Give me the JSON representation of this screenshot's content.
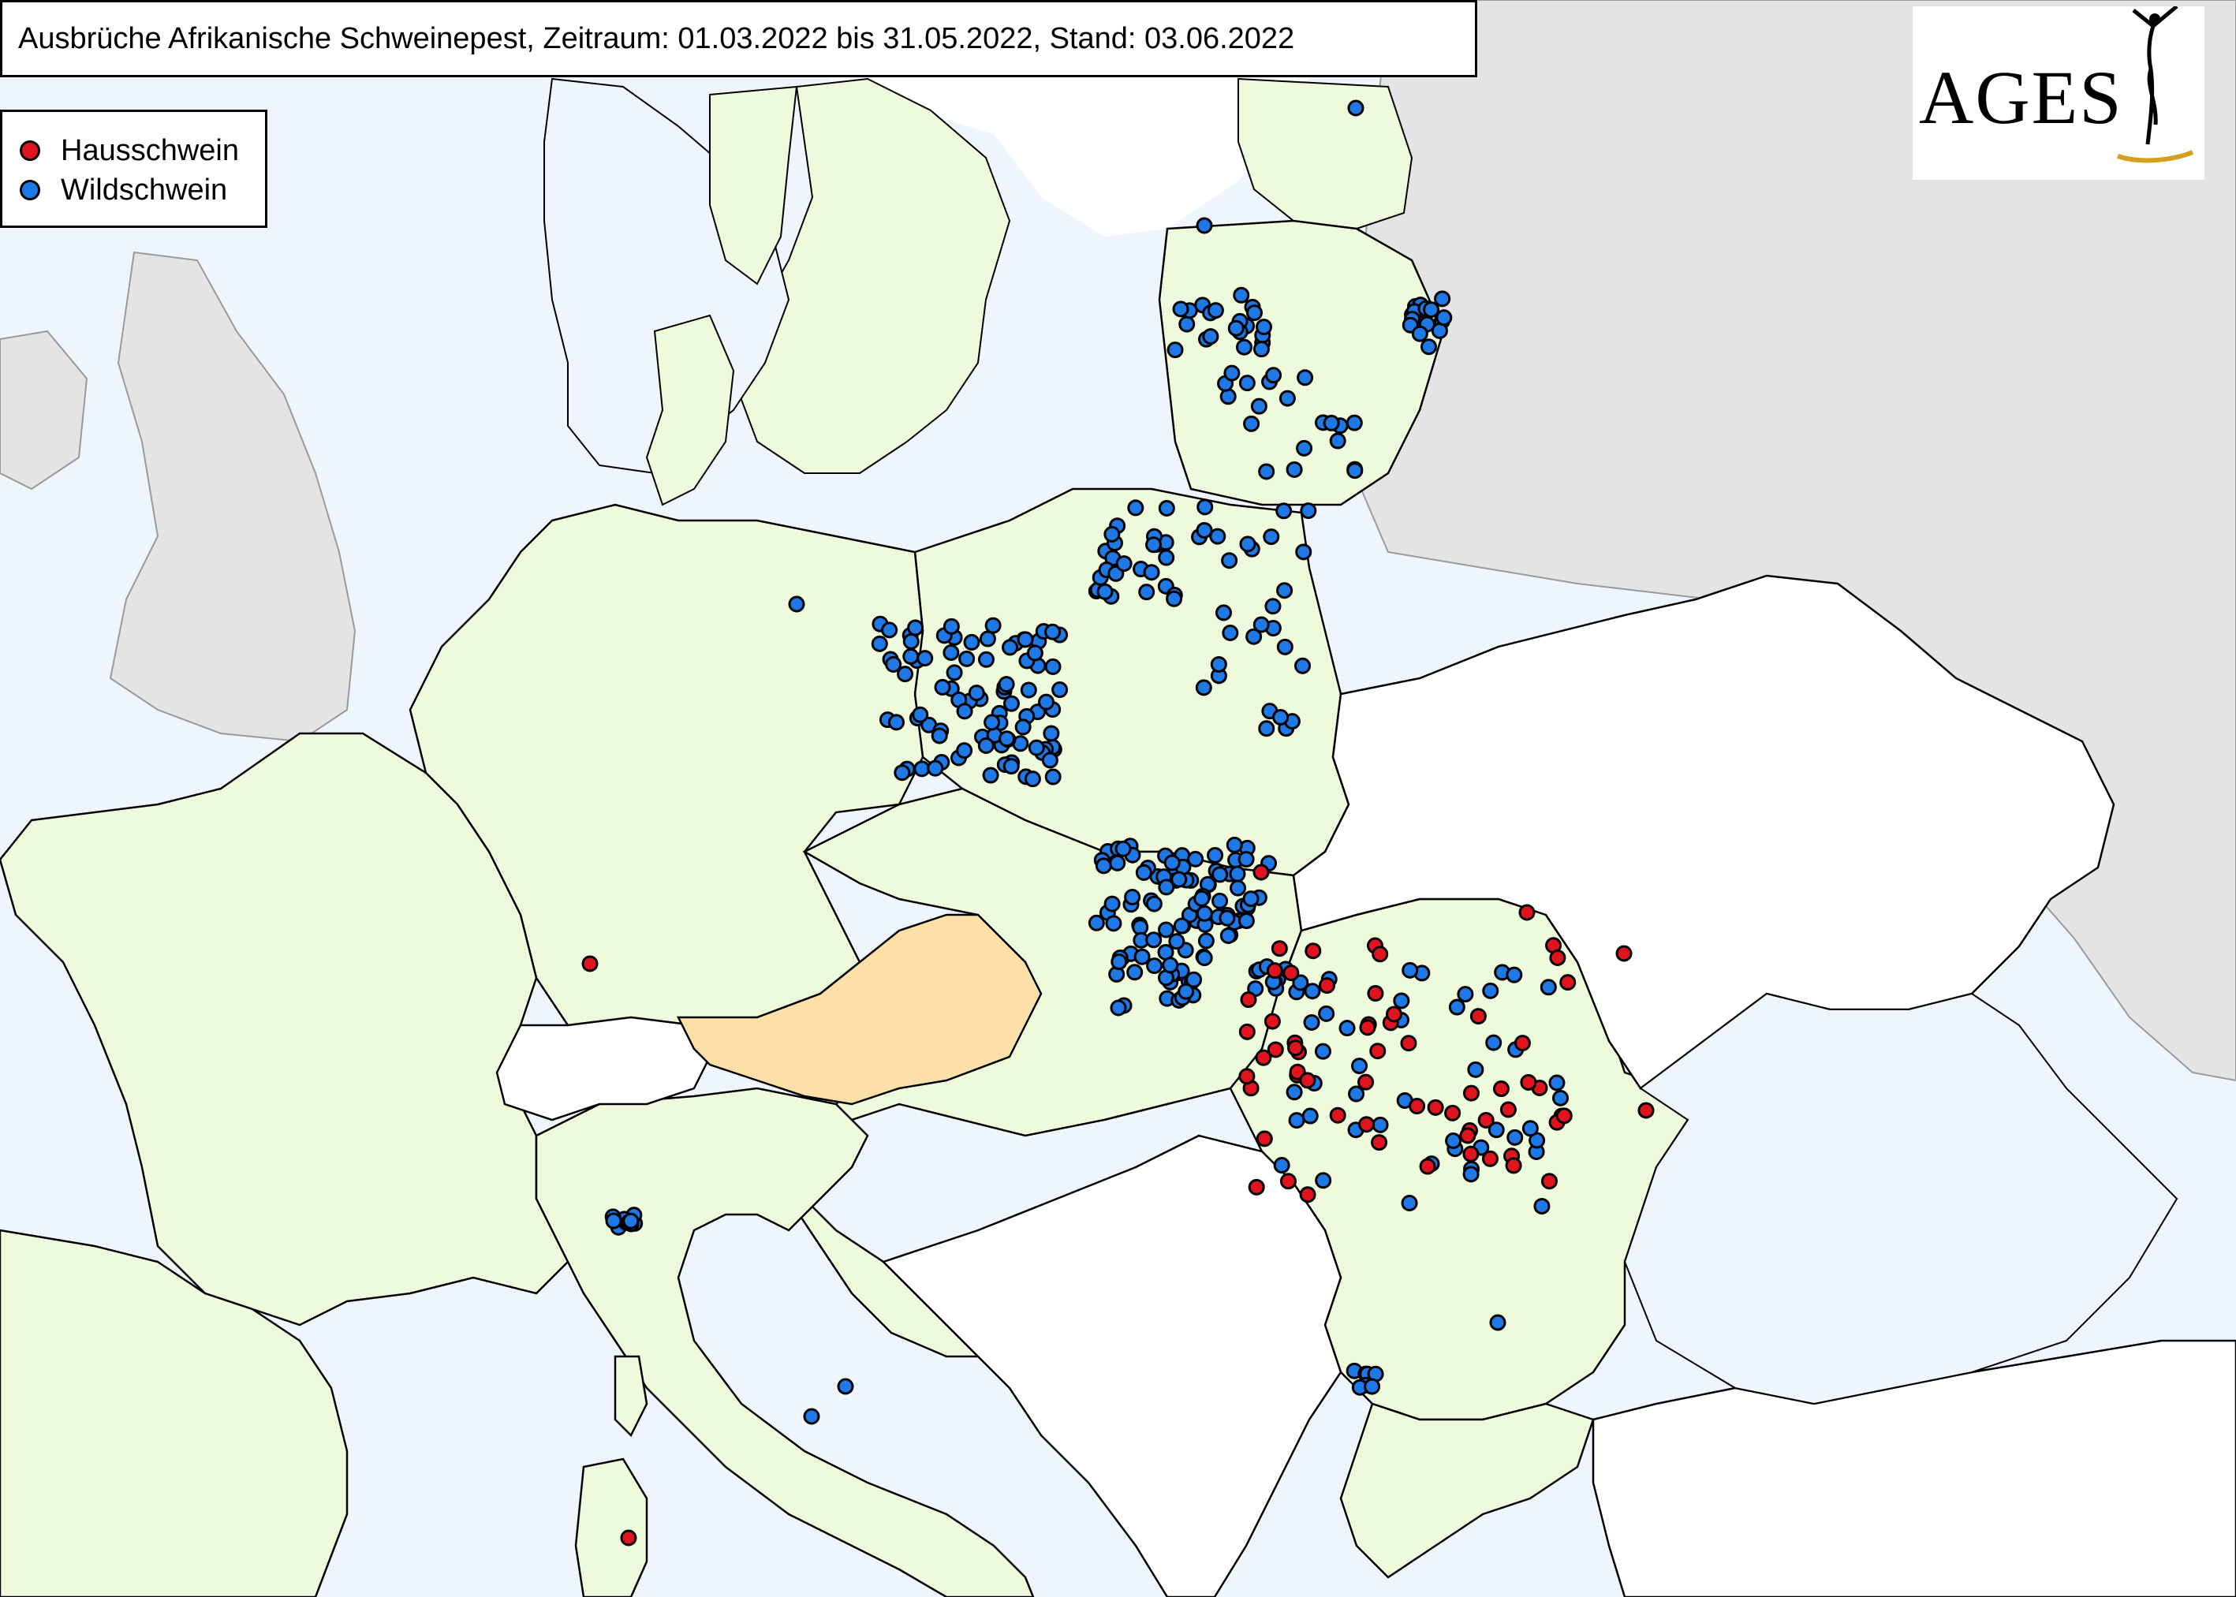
{
  "title": "Ausbrüche Afrikanische Schweinepest, Zeitraum: 01.03.2022 bis 31.05.2022, Stand: 03.06.2022",
  "legend": {
    "items": [
      {
        "label": "Hausschwein",
        "color": "#e0141e"
      },
      {
        "label": "Wildschwein",
        "color": "#1e78e6"
      }
    ]
  },
  "logo": {
    "text": "AGES"
  },
  "colors": {
    "sea": "#eef5fc",
    "affected_country": "#eefadc",
    "austria": "#fce0a8",
    "unaffected_country": "#ffffff",
    "non_eu": "#e4e4e4",
    "border": "#000000"
  }
}
